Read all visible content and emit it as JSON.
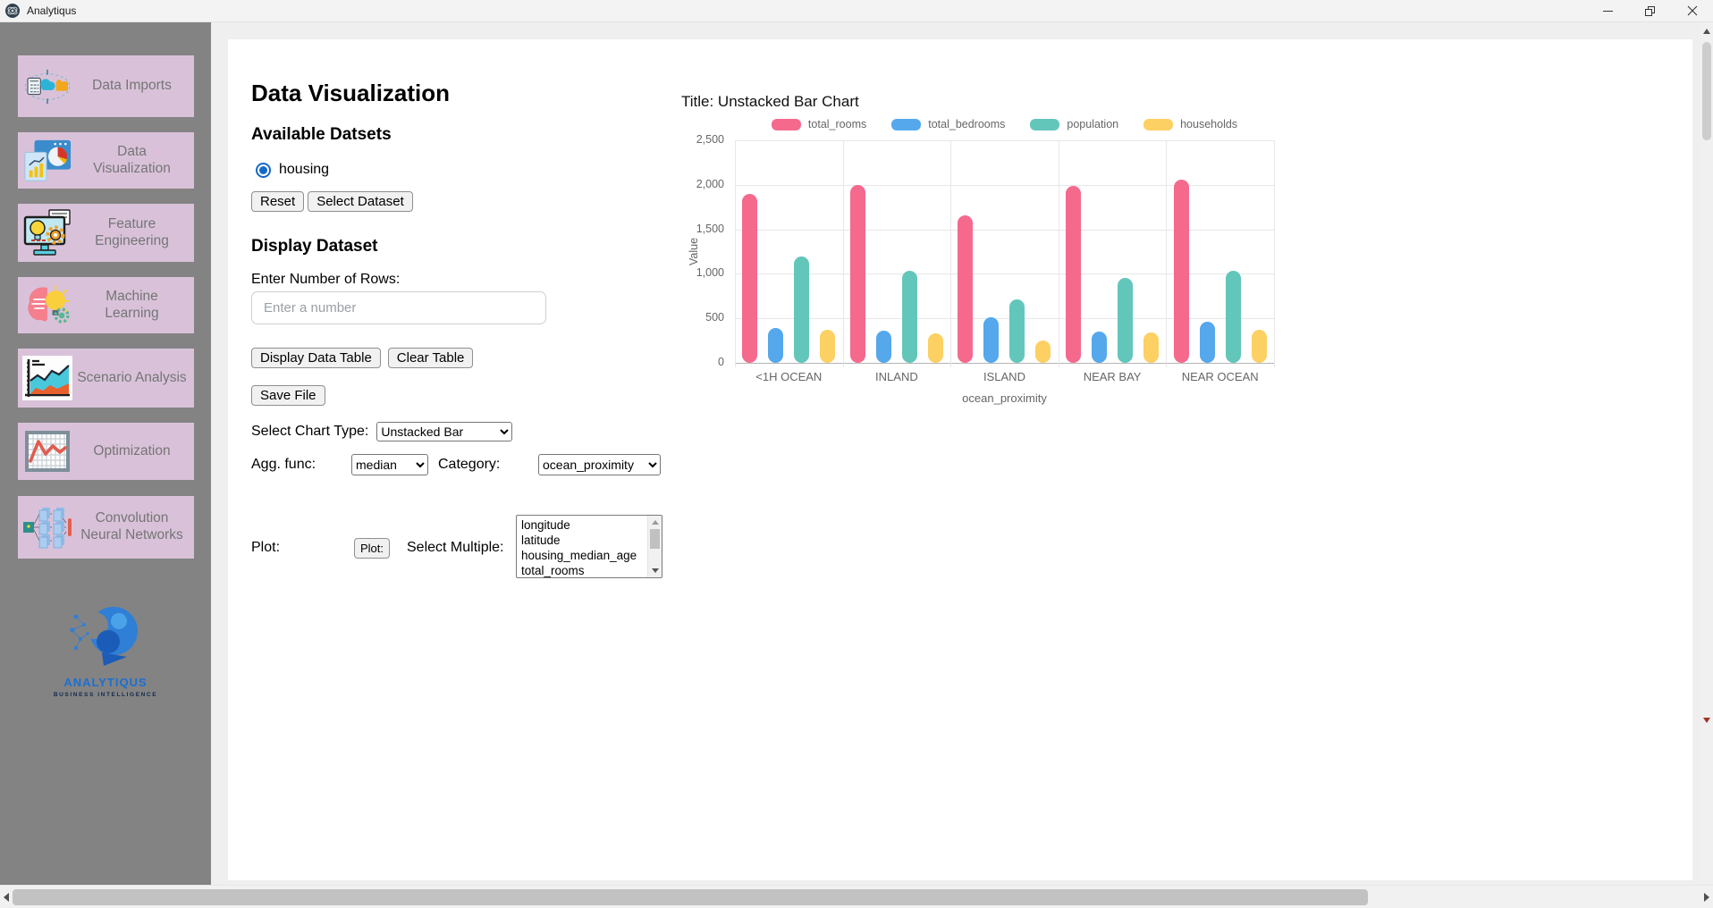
{
  "window": {
    "title": "Analytiqus",
    "app_icon": "analytiqus-globe-icon",
    "controls": {
      "minimize_icon": "minimize",
      "restore_icon": "restore",
      "close_icon": "close"
    }
  },
  "sidebar": {
    "items": [
      {
        "label": "Data Imports",
        "icon": "data-imports-icon"
      },
      {
        "label": "Data Visualization",
        "icon": "data-visualization-icon"
      },
      {
        "label": "Feature Engineering",
        "icon": "feature-engineering-icon"
      },
      {
        "label": "Machine Learning",
        "icon": "machine-learning-icon"
      },
      {
        "label": "Scenario Analysis",
        "icon": "scenario-analysis-icon"
      },
      {
        "label": "Optimization",
        "icon": "optimization-icon"
      },
      {
        "label": "Convolution Neural Networks",
        "icon": "cnn-icon"
      }
    ],
    "logo": {
      "brand": "ANALYTIQUS",
      "tagline": "BUSINESS INTELLIGENCE",
      "icon": "analytiqus-head-logo"
    }
  },
  "main": {
    "page_title": "Data Visualization",
    "datasets_section": {
      "heading": "Available Datsets",
      "radio_label": "housing",
      "radio_selected": true,
      "reset_label": "Reset",
      "select_dataset_label": "Select Dataset"
    },
    "display_section": {
      "heading": "Display Dataset",
      "rows_label": "Enter Number of Rows:",
      "rows_placeholder": "Enter a number",
      "rows_value": "",
      "display_table_label": "Display Data Table",
      "clear_table_label": "Clear Table",
      "save_file_label": "Save File"
    },
    "chart_controls": {
      "chart_type_label": "Select Chart Type:",
      "chart_type_value": "Unstacked Bar",
      "agg_label": "Agg. func:",
      "agg_value": "median",
      "category_label": "Category:",
      "category_value": "ocean_proximity",
      "plot_label": "Plot:",
      "plot_button_label": "Plot:",
      "select_multiple_label": "Select Multiple:",
      "columns": [
        "longitude",
        "latitude",
        "housing_median_age",
        "total_rooms"
      ]
    }
  },
  "chart_data": {
    "type": "bar",
    "title": "Title: Unstacked Bar Chart",
    "categories": [
      "<1H OCEAN",
      "INLAND",
      "ISLAND",
      "NEAR BAY",
      "NEAR OCEAN"
    ],
    "series": [
      {
        "name": "total_rooms",
        "color": "#f5698d",
        "values": [
          1900,
          2000,
          1660,
          1990,
          2060
        ]
      },
      {
        "name": "total_bedrooms",
        "color": "#55a8ec",
        "values": [
          390,
          360,
          510,
          350,
          460
        ]
      },
      {
        "name": "population",
        "color": "#63c6bb",
        "values": [
          1190,
          1030,
          710,
          950,
          1030
        ]
      },
      {
        "name": "households",
        "color": "#fcd063",
        "values": [
          370,
          330,
          250,
          340,
          370
        ]
      }
    ],
    "xlabel": "ocean_proximity",
    "ylabel": "Value",
    "ylim": [
      0,
      2500
    ],
    "ytick_step": 500,
    "ytick_labels": [
      "0",
      "500",
      "1,000",
      "1,500",
      "2,000",
      "2,500"
    ],
    "legend_position": "top",
    "grid": true
  }
}
